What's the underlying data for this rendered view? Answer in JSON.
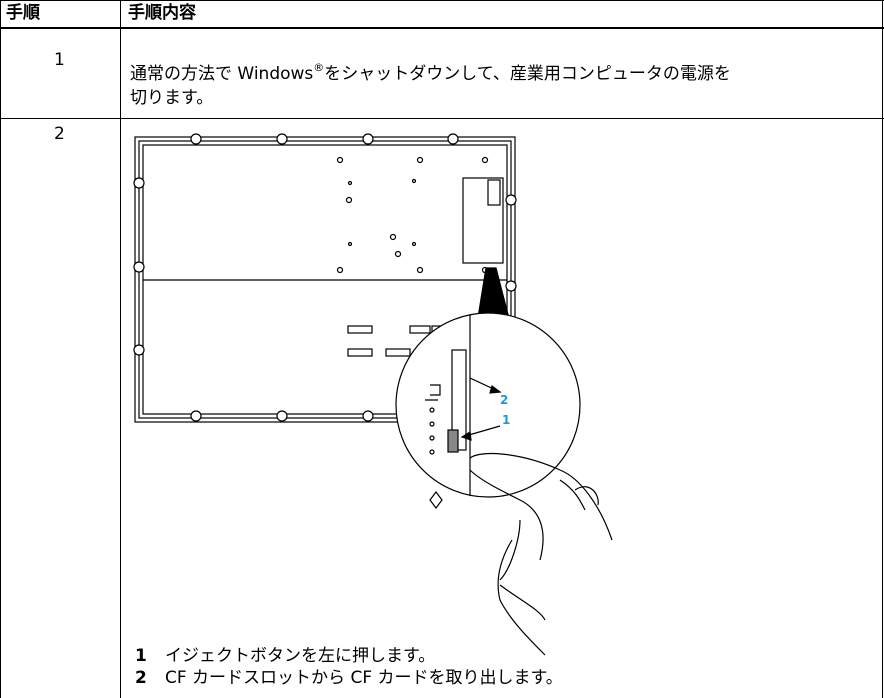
{
  "table": {
    "header": [
      "手順",
      "手順内容"
    ],
    "rows": [
      {
        "step": "1",
        "text": [
          "通常の方法で Windows",
          "®",
          "をシャットダウンして、産業用コンピュータの電源を",
          "切ります。"
        ]
      },
      {
        "step": "2",
        "callouts": [
          "2",
          "1"
        ],
        "legend": [
          {
            "num": "1",
            "text": "イジェクトボタンを左に押します。"
          },
          {
            "num": "2",
            "text": "CF カードスロットから CF カードを取り出します。"
          }
        ]
      }
    ]
  }
}
